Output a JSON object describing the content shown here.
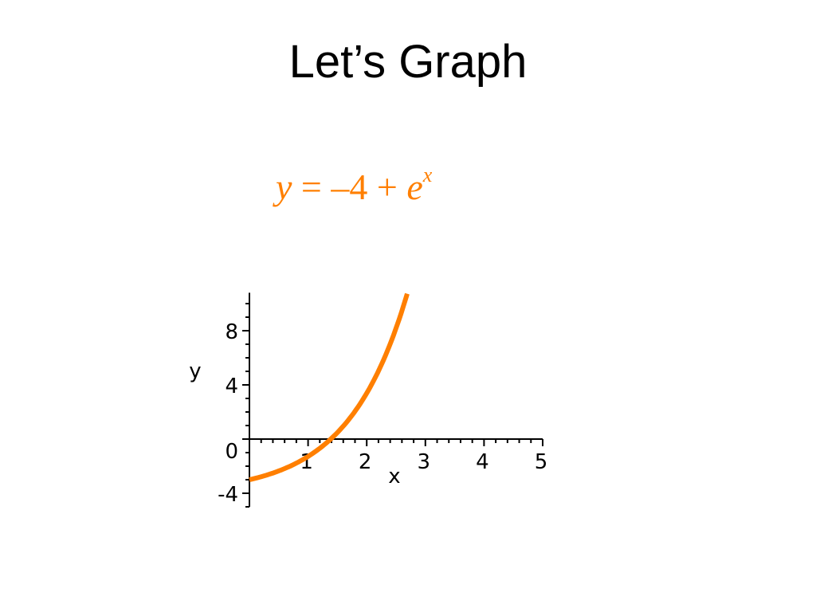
{
  "slide": {
    "title": "Let’s Graph",
    "equation": {
      "lhs": "y",
      "eq": " = ",
      "const": "–4",
      "plus": " + ",
      "base": "e",
      "exponent": "x"
    }
  },
  "chart_data": {
    "type": "line",
    "function": "y = -4 + e^x",
    "xlabel": "x",
    "ylabel": "y",
    "xlim": [
      0,
      5
    ],
    "ylim": [
      -5,
      10.8
    ],
    "xticks": [
      1,
      2,
      3,
      4,
      5
    ],
    "yticks": [
      -4,
      0,
      4,
      8
    ],
    "x_tick_labels": [
      "1",
      "2",
      "3",
      "4",
      "5"
    ],
    "y_tick_labels": [
      "-4",
      "0",
      "4",
      "8"
    ],
    "grid": false,
    "series": [
      {
        "color": "#ff7f00",
        "x": [
          0,
          0.25,
          0.5,
          0.75,
          1,
          1.25,
          1.386,
          1.5,
          1.75,
          2,
          2.25,
          2.5,
          2.69
        ],
        "y": [
          -3,
          -2.72,
          -2.35,
          -1.88,
          -1.28,
          -0.51,
          0,
          0.48,
          1.75,
          3.39,
          5.49,
          8.18,
          10.73
        ]
      }
    ]
  }
}
